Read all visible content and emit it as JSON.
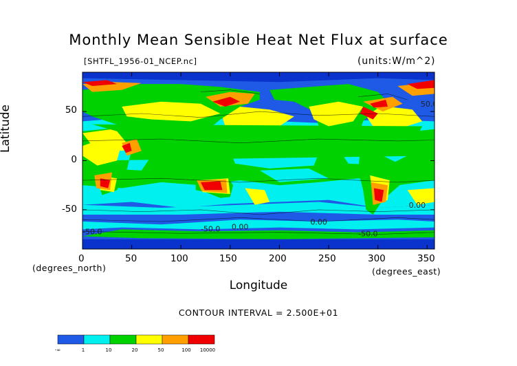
{
  "chart_data": {
    "type": "heatmap",
    "title": "Monthly Mean Sensible Heat Net Flux at surface",
    "subtitle_left": "[SHTFL_1956-01_NCEP.nc]",
    "units": "(units:W/m^2)",
    "xlabel": "Longitude",
    "ylabel": "Latitude",
    "x_units": "(degrees_east)",
    "y_units": "(degrees_north)",
    "xlim": [
      0,
      357.5
    ],
    "ylim": [
      -90,
      90
    ],
    "x_ticks": [
      "0",
      "50",
      "100",
      "150",
      "200",
      "250",
      "300",
      "350"
    ],
    "y_ticks": [
      "50",
      "0",
      "-50"
    ],
    "contour_interval": "CONTOUR INTERVAL = 2.500E+01",
    "contour_labels": [
      "-50.0",
      "-50.0",
      "-50.0",
      "0.00",
      "0.00",
      "0.00",
      "50.0"
    ],
    "colorbar": {
      "boundaries": [
        "-∞",
        "1",
        "10",
        "20",
        "50",
        "100",
        "10000"
      ],
      "colors": [
        "#1e5ae6",
        "#00f0f0",
        "#00d200",
        "#ffff00",
        "#ffa000",
        "#f00000"
      ]
    },
    "palette": {
      "ocean_base": "#1e5ae6",
      "polar": "#0a32cc",
      "cyan": "#00f0f0",
      "green": "#00d200",
      "yellow": "#ffff00",
      "orange": "#ffa000",
      "red": "#f00000"
    }
  }
}
